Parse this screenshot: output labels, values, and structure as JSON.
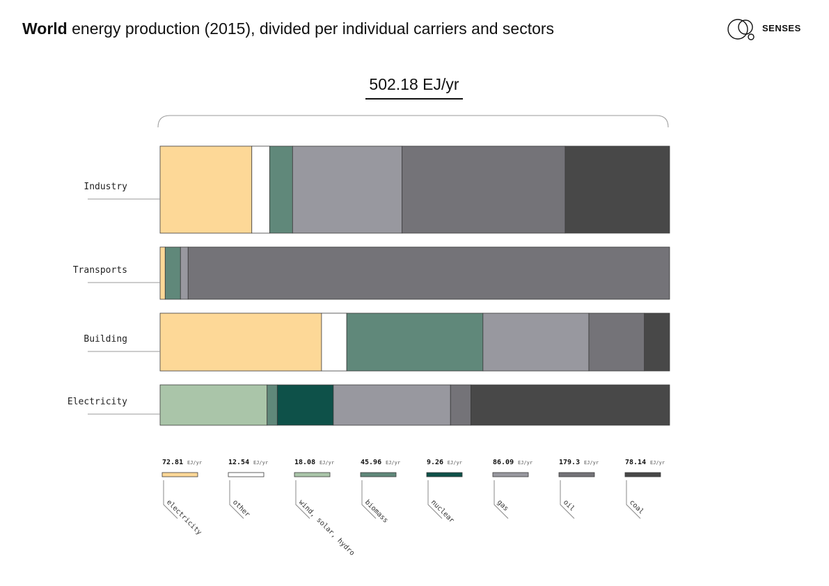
{
  "header": {
    "title_bold": "World",
    "title_rest": " energy production (2015), divided per individual carriers and sectors",
    "brand": "SENSES"
  },
  "total_label": "502.18 EJ/yr",
  "chart_data": {
    "type": "bar",
    "stacked": true,
    "orientation": "horizontal",
    "normalized": true,
    "total": "502.18 EJ/yr",
    "categories": [
      "Industry",
      "Transports",
      "Building",
      "Electricity"
    ],
    "series": [
      {
        "name": "electricity",
        "total": "72.81",
        "unit": "EJ/yr",
        "color": "#FDD897",
        "values": [
          0.18,
          0.01,
          0.32,
          0.0
        ]
      },
      {
        "name": "other",
        "total": "12.54",
        "unit": "EJ/yr",
        "color": "#FFFFFF",
        "values": [
          0.035,
          0.0,
          0.05,
          0.0
        ]
      },
      {
        "name": "wind, solar, hydro",
        "total": "18.08",
        "unit": "EJ/yr",
        "color": "#AAC5A9",
        "values": [
          0.0,
          0.0,
          0.0,
          0.21
        ]
      },
      {
        "name": "biomass",
        "total": "45.96",
        "unit": "EJ/yr",
        "color": "#60887A",
        "values": [
          0.045,
          0.03,
          0.27,
          0.02
        ]
      },
      {
        "name": "nuclear",
        "total": "9.26",
        "unit": "EJ/yr",
        "color": "#0E5149",
        "values": [
          0.0,
          0.0,
          0.0,
          0.11
        ]
      },
      {
        "name": "gas",
        "total": "86.09",
        "unit": "EJ/yr",
        "color": "#98989F",
        "values": [
          0.215,
          0.015,
          0.21,
          0.23
        ]
      },
      {
        "name": "oil",
        "total": "179.3",
        "unit": "EJ/yr",
        "color": "#747378",
        "values": [
          0.32,
          0.945,
          0.11,
          0.04
        ]
      },
      {
        "name": "coal",
        "total": "78.14",
        "unit": "EJ/yr",
        "color": "#484848",
        "values": [
          0.205,
          0.0,
          0.05,
          0.39
        ]
      }
    ]
  }
}
